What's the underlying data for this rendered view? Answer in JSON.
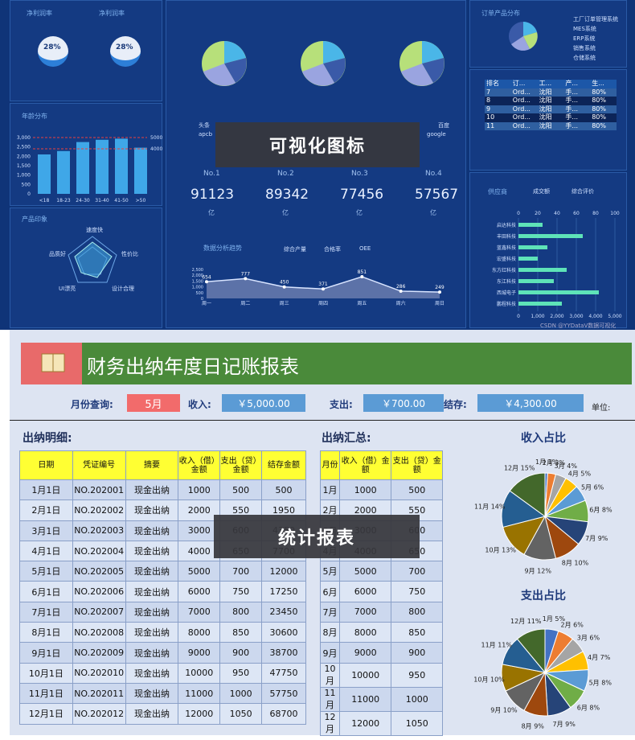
{
  "dash": {
    "net_rate_1": "净利润率",
    "net_rate_2": "净利润率",
    "pct1": "28%",
    "pct2": "28%",
    "age_title": "年龄分布",
    "age_cats": [
      "<18",
      "18-23",
      "24-30",
      "31-40",
      "41-50",
      ">50"
    ],
    "age_values": [
      3500,
      3800,
      4600,
      4800,
      4900,
      4100
    ],
    "age_y": [
      "0",
      "500",
      "1,000",
      "1,500",
      "2,000",
      "2,500",
      "3,000"
    ],
    "age_ref": [
      "5000",
      "4000"
    ],
    "product_title": "产品印象",
    "radar_labels": [
      "速度快",
      "品质好",
      "性价比",
      "设计合理",
      "UI漂亮"
    ],
    "orders_title": "订单产品分布",
    "legend_right": [
      "工厂订单管理系统",
      "MES系统",
      "ERP系统",
      "销售系统",
      "仓储系统"
    ],
    "rank_head": [
      "排名",
      "订...",
      "工...",
      "产...",
      "生..."
    ],
    "rank_rows": [
      [
        "7",
        "Ord...",
        "沈阳",
        "手...",
        "80%"
      ],
      [
        "8",
        "Ord...",
        "沈阳",
        "手...",
        "80%"
      ],
      [
        "9",
        "Ord...",
        "沈阳",
        "手...",
        "80%"
      ],
      [
        "10",
        "Ord...",
        "沈阳",
        "手...",
        "80%"
      ],
      [
        "11",
        "Ord...",
        "沈阳",
        "手...",
        "80%"
      ]
    ],
    "mid_legend": [
      "头条",
      "apcb",
      "百度",
      "google"
    ],
    "ranks": [
      "No.1",
      "No.2",
      "No.3",
      "No.4"
    ],
    "values": [
      "91123",
      "89342",
      "77456",
      "57567"
    ],
    "units": [
      "亿",
      "亿",
      "亿",
      "亿"
    ],
    "trend_title": "数据分析趋势",
    "trend_legend": [
      "综合产量",
      "合格率",
      "OEE"
    ],
    "trend_x": [
      "周一",
      "周二",
      "周三",
      "周四",
      "周五",
      "周六",
      "周日"
    ],
    "trend_labels": [
      "654",
      "777",
      "450",
      "371",
      "851",
      "286",
      "249"
    ],
    "trend_y": [
      "2,500",
      "2,000",
      "1,500",
      "1,000",
      "500",
      "0"
    ],
    "supplier_title": "供应商",
    "supplier_legend": [
      "成交额",
      "综合评价"
    ],
    "suppliers": [
      "启达科技",
      "丰田科技",
      "蓝鑫科技",
      "宏盛科技",
      "东方红科技",
      "东江科技",
      "西城电子",
      "鹏程科技"
    ],
    "supplier_x": [
      "0",
      "20",
      "40",
      "60",
      "80",
      "100"
    ],
    "supplier_x2": [
      "0",
      "1,000",
      "2,000",
      "3,000",
      "4,000",
      "5,000"
    ],
    "watermark": "CSDN @YYDataV数据可视化"
  },
  "overlay1": "可视化图标",
  "overlay2": "统计报表",
  "sheet": {
    "title": "财务出纳年度日记账报表",
    "month_label": "月份查询:",
    "month_value": "5月",
    "income_label": "收入:",
    "income_value": "￥5,000.00",
    "expense_label": "支出:",
    "expense_value": "￥700.00",
    "balance_label": "结存:",
    "balance_value": "￥4,300.00",
    "unit_label": "单位:",
    "detail_title": "出纳明细:",
    "summary_title": "出纳汇总:",
    "detail_head": [
      "日期",
      "凭证编号",
      "摘要",
      "收入（借）金额",
      "支出（贷）金额",
      "结存金额"
    ],
    "detail_rows": [
      [
        "1月1日",
        "NO.202001",
        "现金出纳",
        "1000",
        "500",
        "500"
      ],
      [
        "2月1日",
        "NO.202002",
        "现金出纳",
        "2000",
        "550",
        "1950"
      ],
      [
        "3月1日",
        "NO.202003",
        "现金出纳",
        "3000",
        "600",
        "4350"
      ],
      [
        "4月1日",
        "NO.202004",
        "现金出纳",
        "4000",
        "650",
        "7700"
      ],
      [
        "5月1日",
        "NO.202005",
        "现金出纳",
        "5000",
        "700",
        "12000"
      ],
      [
        "6月1日",
        "NO.202006",
        "现金出纳",
        "6000",
        "750",
        "17250"
      ],
      [
        "7月1日",
        "NO.202007",
        "现金出纳",
        "7000",
        "800",
        "23450"
      ],
      [
        "8月1日",
        "NO.202008",
        "现金出纳",
        "8000",
        "850",
        "30600"
      ],
      [
        "9月1日",
        "NO.202009",
        "现金出纳",
        "9000",
        "900",
        "38700"
      ],
      [
        "10月1日",
        "NO.202010",
        "现金出纳",
        "10000",
        "950",
        "47750"
      ],
      [
        "11月1日",
        "NO.202011",
        "现金出纳",
        "11000",
        "1000",
        "57750"
      ],
      [
        "12月1日",
        "NO.202012",
        "现金出纳",
        "12000",
        "1050",
        "68700"
      ]
    ],
    "summary_head": [
      "月份",
      "收入（借）金额",
      "支出（贷）金额"
    ],
    "summary_rows": [
      [
        "1月",
        "1000",
        "500"
      ],
      [
        "2月",
        "2000",
        "550"
      ],
      [
        "3月",
        "3000",
        "600"
      ],
      [
        "4月",
        "4000",
        "650"
      ],
      [
        "5月",
        "5000",
        "700"
      ],
      [
        "6月",
        "6000",
        "750"
      ],
      [
        "7月",
        "7000",
        "800"
      ],
      [
        "8月",
        "8000",
        "850"
      ],
      [
        "9月",
        "9000",
        "900"
      ],
      [
        "10月",
        "10000",
        "950"
      ],
      [
        "11月",
        "11000",
        "1000"
      ],
      [
        "12月",
        "12000",
        "1050"
      ]
    ],
    "income_pie_title": "收入占比",
    "expense_pie_title": "支出占比",
    "income_pie": [
      [
        "1月",
        "1%"
      ],
      [
        "2月",
        "3%"
      ],
      [
        "3月",
        "4%"
      ],
      [
        "4月",
        "5%"
      ],
      [
        "5月",
        "6%"
      ],
      [
        "6月",
        "8%"
      ],
      [
        "7月",
        "9%"
      ],
      [
        "8月",
        "10%"
      ],
      [
        "9月",
        "12%"
      ],
      [
        "10月",
        "13%"
      ],
      [
        "11月",
        "14%"
      ],
      [
        "12月",
        "15%"
      ]
    ],
    "expense_pie": [
      [
        "1月",
        "5%"
      ],
      [
        "2月",
        "6%"
      ],
      [
        "3月",
        "6%"
      ],
      [
        "4月",
        "7%"
      ],
      [
        "5月",
        "8%"
      ],
      [
        "6月",
        "8%"
      ],
      [
        "7月",
        "9%"
      ],
      [
        "8月",
        "9%"
      ],
      [
        "9月",
        "10%"
      ],
      [
        "10月",
        "10%"
      ],
      [
        "11月",
        "11%"
      ],
      [
        "12月",
        "11%"
      ]
    ]
  },
  "chart_data": [
    {
      "type": "bar",
      "title": "年龄分布",
      "categories": [
        "<18",
        "18-23",
        "24-30",
        "31-40",
        "41-50",
        ">50"
      ],
      "values": [
        3500,
        3800,
        4600,
        4800,
        4900,
        4100
      ]
    },
    {
      "type": "line",
      "title": "数据分析趋势",
      "categories": [
        "周一",
        "周二",
        "周三",
        "周四",
        "周五",
        "周六",
        "周日"
      ],
      "series": [
        {
          "name": "综合产量",
          "values": [
            654,
            777,
            450,
            371,
            851,
            286,
            249
          ]
        }
      ]
    },
    {
      "type": "pie",
      "title": "收入占比",
      "categories": [
        "1月",
        "2月",
        "3月",
        "4月",
        "5月",
        "6月",
        "7月",
        "8月",
        "9月",
        "10月",
        "11月",
        "12月"
      ],
      "values": [
        1,
        3,
        4,
        5,
        6,
        8,
        9,
        10,
        12,
        13,
        14,
        15
      ]
    },
    {
      "type": "pie",
      "title": "支出占比",
      "categories": [
        "1月",
        "2月",
        "3月",
        "4月",
        "5月",
        "6月",
        "7月",
        "8月",
        "9月",
        "10月",
        "11月",
        "12月"
      ],
      "values": [
        5,
        6,
        6,
        7,
        8,
        8,
        9,
        9,
        10,
        10,
        11,
        11
      ]
    }
  ],
  "colors": {
    "pie": [
      "#4472c4",
      "#ed7d31",
      "#a5a5a5",
      "#ffc000",
      "#5b9bd5",
      "#70ad47",
      "#264478",
      "#9e480e",
      "#636363",
      "#997300",
      "#255e91",
      "#43682b"
    ]
  }
}
